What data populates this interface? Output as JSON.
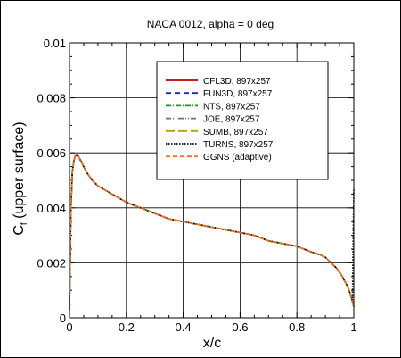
{
  "chart_data": {
    "type": "line",
    "title": "NACA 0012, alpha = 0 deg",
    "xlabel": "x/c",
    "ylabel_main": "C",
    "ylabel_sub": "f",
    "ylabel_rest": " (upper surface)",
    "xlim": [
      0,
      1
    ],
    "ylim": [
      0,
      0.01
    ],
    "grid": true,
    "legend_position": "upper-right",
    "x_ticks": [
      0,
      0.2,
      0.4,
      0.6,
      0.8,
      1
    ],
    "x_tick_labels": [
      "0",
      "0.2",
      "0.4",
      "0.6",
      "0.8",
      "1"
    ],
    "y_ticks": [
      0,
      0.002,
      0.004,
      0.006,
      0.008,
      0.01
    ],
    "y_tick_labels": [
      "0",
      "0.002",
      "0.004",
      "0.006",
      "0.008",
      "0.01"
    ],
    "x": [
      0.0,
      0.005,
      0.01,
      0.015,
      0.02,
      0.025,
      0.03,
      0.035,
      0.04,
      0.05,
      0.06,
      0.08,
      0.1,
      0.15,
      0.2,
      0.25,
      0.3,
      0.35,
      0.4,
      0.45,
      0.5,
      0.55,
      0.6,
      0.65,
      0.7,
      0.75,
      0.8,
      0.85,
      0.88,
      0.9,
      0.92,
      0.94,
      0.96,
      0.97,
      0.98,
      0.99,
      0.995,
      1.0
    ],
    "series": [
      {
        "name": "CFL3D, 897x257",
        "color": "#c00000",
        "dash": "solid",
        "values": [
          0.0003,
          0.004,
          0.0053,
          0.0057,
          0.0059,
          0.0059,
          0.0059,
          0.0058,
          0.0057,
          0.0055,
          0.0053,
          0.005,
          0.0048,
          0.0045,
          0.0042,
          0.004,
          0.0038,
          0.0036,
          0.0035,
          0.0034,
          0.0033,
          0.0032,
          0.0031,
          0.003,
          0.0028,
          0.0027,
          0.0026,
          0.0024,
          0.0023,
          0.0022,
          0.002,
          0.0018,
          0.0015,
          0.0013,
          0.0011,
          0.0008,
          0.0006,
          0.0004
        ]
      },
      {
        "name": "FUN3D, 897x257",
        "color": "#2020d0",
        "dash": "6,4",
        "values": [
          0.0003,
          0.004,
          0.0053,
          0.0057,
          0.0059,
          0.0059,
          0.0059,
          0.0058,
          0.0057,
          0.0055,
          0.0053,
          0.005,
          0.0048,
          0.0045,
          0.0042,
          0.004,
          0.0038,
          0.0036,
          0.0035,
          0.0034,
          0.0033,
          0.0032,
          0.0031,
          0.003,
          0.0028,
          0.0027,
          0.0026,
          0.0024,
          0.0023,
          0.0022,
          0.002,
          0.0018,
          0.0015,
          0.0013,
          0.0011,
          0.0008,
          0.0006,
          0.0004
        ]
      },
      {
        "name": "NTS, 897x257",
        "color": "#10a010",
        "dash": "6,2,1,2",
        "values": [
          0.0003,
          0.004,
          0.0053,
          0.0057,
          0.0059,
          0.0059,
          0.0059,
          0.0058,
          0.0057,
          0.0055,
          0.0053,
          0.005,
          0.0048,
          0.0045,
          0.0042,
          0.004,
          0.0038,
          0.0036,
          0.0035,
          0.0034,
          0.0033,
          0.0032,
          0.0031,
          0.003,
          0.0028,
          0.0027,
          0.0026,
          0.0024,
          0.0023,
          0.0022,
          0.002,
          0.0018,
          0.0015,
          0.0013,
          0.0011,
          0.0008,
          0.0006,
          0.0004
        ]
      },
      {
        "name": "JOE, 897x257",
        "color": "#707070",
        "dash": "6,2,1,2,1,2",
        "values": [
          0.0003,
          0.004,
          0.0053,
          0.0057,
          0.0059,
          0.0059,
          0.0059,
          0.0058,
          0.0057,
          0.0055,
          0.0053,
          0.005,
          0.0048,
          0.0045,
          0.0042,
          0.004,
          0.0038,
          0.0036,
          0.0035,
          0.0034,
          0.0033,
          0.0032,
          0.0031,
          0.003,
          0.0028,
          0.0027,
          0.0026,
          0.0024,
          0.0023,
          0.0022,
          0.002,
          0.0018,
          0.0015,
          0.0013,
          0.0011,
          0.0008,
          0.0006,
          0.0004
        ]
      },
      {
        "name": "SUMB, 897x257",
        "color": "#b0a000",
        "dash": "10,4",
        "values": [
          0.0003,
          0.004,
          0.0053,
          0.0057,
          0.0059,
          0.0059,
          0.0059,
          0.0058,
          0.0057,
          0.0055,
          0.0053,
          0.005,
          0.0048,
          0.0045,
          0.0042,
          0.004,
          0.0038,
          0.0036,
          0.0035,
          0.0034,
          0.0033,
          0.0032,
          0.0031,
          0.003,
          0.0028,
          0.0027,
          0.0026,
          0.0024,
          0.0023,
          0.0022,
          0.002,
          0.0018,
          0.0015,
          0.0013,
          0.0011,
          0.0008,
          0.0006,
          0.0004
        ]
      },
      {
        "name": "TURNS, 897x257",
        "color": "#000000",
        "dash": "1.5,1.5",
        "values": [
          0.0003,
          0.004,
          0.0053,
          0.0057,
          0.0059,
          0.0059,
          0.0059,
          0.0058,
          0.0057,
          0.0055,
          0.0053,
          0.005,
          0.0048,
          0.0045,
          0.0042,
          0.004,
          0.0038,
          0.0036,
          0.0035,
          0.0034,
          0.0033,
          0.0032,
          0.0031,
          0.003,
          0.0028,
          0.0027,
          0.0026,
          0.0024,
          0.0023,
          0.0022,
          0.002,
          0.0018,
          0.0015,
          0.0013,
          0.0011,
          0.0008,
          0.0006,
          0.0047
        ]
      },
      {
        "name": "GGNS (adaptive)",
        "color": "#ff6a20",
        "dash": "5,3",
        "values": [
          0.0003,
          0.004,
          0.0053,
          0.0057,
          0.0059,
          0.0059,
          0.0059,
          0.0058,
          0.0057,
          0.0055,
          0.0053,
          0.005,
          0.0048,
          0.0045,
          0.0042,
          0.004,
          0.0038,
          0.0036,
          0.0035,
          0.0034,
          0.0033,
          0.0032,
          0.0031,
          0.003,
          0.0028,
          0.0027,
          0.0026,
          0.0024,
          0.0023,
          0.0022,
          0.002,
          0.0018,
          0.0015,
          0.0013,
          0.0011,
          0.0008,
          0.0006,
          0.0004
        ]
      }
    ]
  }
}
